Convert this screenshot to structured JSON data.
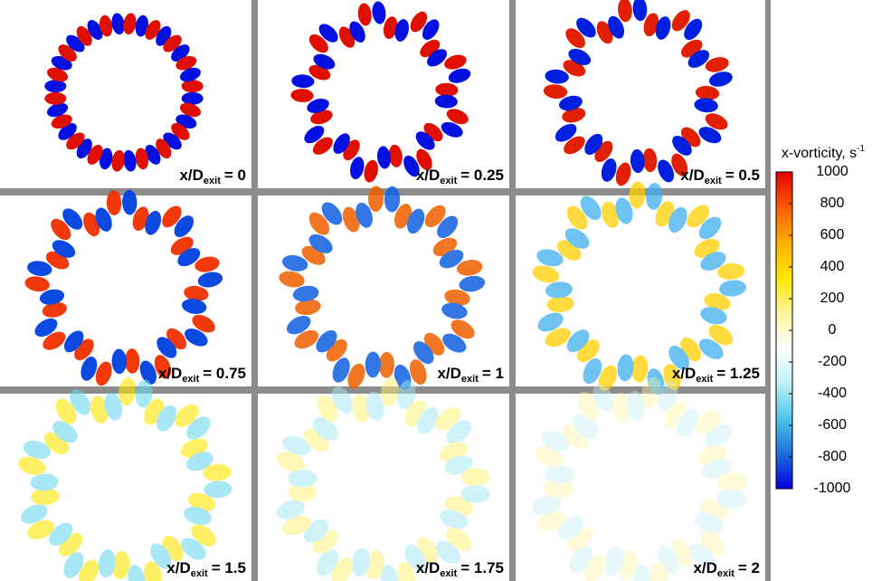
{
  "panel_label": {
    "prefix": "x/D",
    "subscript": "exit"
  },
  "panels": [
    {
      "value": "= 0"
    },
    {
      "value": "= 0.25"
    },
    {
      "value": "= 0.5"
    },
    {
      "value": "= 0.75"
    },
    {
      "value": "= 1"
    },
    {
      "value": "= 1.25"
    },
    {
      "value": "= 1.5"
    },
    {
      "value": "= 1.75"
    },
    {
      "value": "= 2"
    }
  ],
  "colorbar": {
    "title": "x-vorticity, s",
    "superscript": "-1",
    "range": [
      -1000,
      1000
    ],
    "ticks": [
      1000,
      800,
      600,
      400,
      200,
      0,
      -200,
      -400,
      -600,
      -800,
      -1000
    ],
    "colors": [
      "#0000e0",
      "#1e6fd8",
      "#4fc6ec",
      "#bff2f6",
      "#ffffff",
      "#fff59a",
      "#ffe600",
      "#ffae00",
      "#ff5a00",
      "#e00000"
    ]
  }
}
